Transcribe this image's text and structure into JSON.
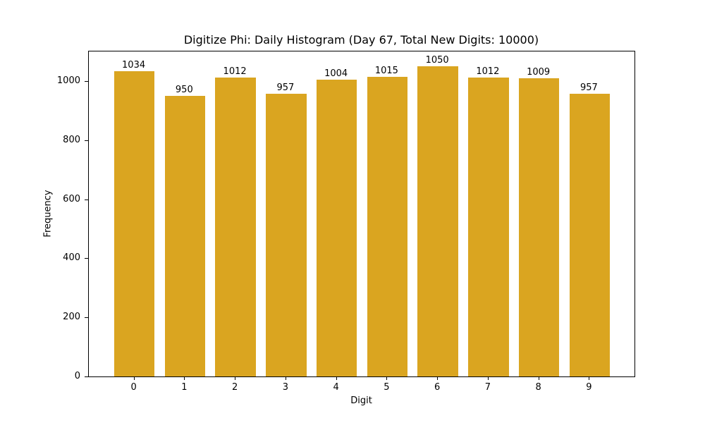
{
  "chart_data": {
    "type": "bar",
    "title": "Digitize Phi: Daily Histogram (Day 67, Total New Digits: 10000)",
    "xlabel": "Digit",
    "ylabel": "Frequency",
    "categories": [
      "0",
      "1",
      "2",
      "3",
      "4",
      "5",
      "6",
      "7",
      "8",
      "9"
    ],
    "values": [
      1034,
      950,
      1012,
      957,
      1004,
      1015,
      1050,
      1012,
      1009,
      957
    ],
    "data_labels": [
      "1034",
      "950",
      "1012",
      "957",
      "1004",
      "1015",
      "1050",
      "1012",
      "1009",
      "957"
    ],
    "yticks": [
      "0",
      "200",
      "400",
      "600",
      "800",
      "1000"
    ],
    "ylim": [
      0,
      1102.5
    ],
    "grid": false,
    "legend": null,
    "bar_color": "#DAA520"
  }
}
